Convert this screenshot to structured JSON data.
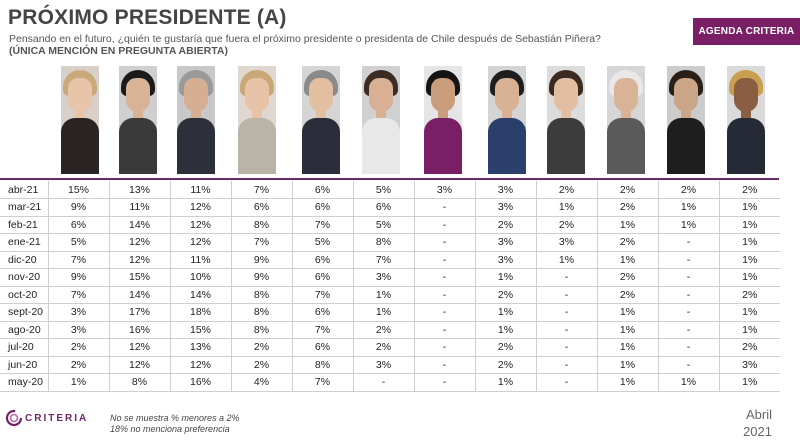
{
  "header": {
    "title": "PRÓXIMO PRESIDENTE (A)",
    "subtitle": "Pensando en el futuro, ¿quién te gustaría que fuera el próximo presidente o presidenta de Chile después de Sebastián Piñera?",
    "subtitle2": "(ÚNICA MENCIÓN EN PREGUNTA ABIERTA)",
    "badge": "AGENDA CRITERIA"
  },
  "colors": {
    "accent": "#7a1f66",
    "separator": "#6b2a6a",
    "grid": "#cfcfcf"
  },
  "portraits": [
    {
      "icon": "person-portrait-icon",
      "bg": "#d8cfc8",
      "hair": "#c9a87a",
      "face": "#e8c4a8",
      "body": "#2a2424"
    },
    {
      "icon": "person-portrait-icon",
      "bg": "#cfcfcf",
      "hair": "#1a1a1a",
      "face": "#d9b396",
      "body": "#3a3a3a"
    },
    {
      "icon": "person-portrait-icon",
      "bg": "#c8c8c8",
      "hair": "#9a9a9a",
      "face": "#d6ae92",
      "body": "#2d2f3a"
    },
    {
      "icon": "person-portrait-icon",
      "bg": "#e0d8d0",
      "hair": "#c9a878",
      "face": "#e6c3a6",
      "body": "#b9b3a8"
    },
    {
      "icon": "person-portrait-icon",
      "bg": "#d5d5d5",
      "hair": "#8a8a8a",
      "face": "#e3bfa2",
      "body": "#2b2e3a"
    },
    {
      "icon": "person-portrait-icon",
      "bg": "#d0d0d0",
      "hair": "#3a2c22",
      "face": "#d8b094",
      "body": "#e8e8e8"
    },
    {
      "icon": "person-portrait-icon",
      "bg": "#e5e5e5",
      "hair": "#141414",
      "face": "#c99c7c",
      "body": "#7a1f66"
    },
    {
      "icon": "person-portrait-icon",
      "bg": "#d4d4d4",
      "hair": "#1e1e1e",
      "face": "#d9b194",
      "body": "#2a3f6b"
    },
    {
      "icon": "person-portrait-icon",
      "bg": "#dcdcdc",
      "hair": "#3a2a20",
      "face": "#e2bea2",
      "body": "#3c3c3c"
    },
    {
      "icon": "person-portrait-icon",
      "bg": "#d6d6d6",
      "hair": "#e8e8e8",
      "face": "#d9b398",
      "body": "#5a5a5a"
    },
    {
      "icon": "person-portrait-icon",
      "bg": "#cccccc",
      "hair": "#2a2018",
      "face": "#caa588",
      "body": "#1e1e1e"
    },
    {
      "icon": "person-portrait-icon",
      "bg": "#dadada",
      "hair": "#c8a050",
      "face": "#8a5e42",
      "body": "#262a36"
    }
  ],
  "chart_data": {
    "type": "table",
    "rows": [
      {
        "month": "abr-21",
        "values": [
          "15%",
          "13%",
          "11%",
          "7%",
          "6%",
          "5%",
          "3%",
          "3%",
          "2%",
          "2%",
          "2%",
          "2%"
        ]
      },
      {
        "month": "mar-21",
        "values": [
          "9%",
          "11%",
          "12%",
          "6%",
          "6%",
          "6%",
          "-",
          "3%",
          "1%",
          "2%",
          "1%",
          "1%"
        ]
      },
      {
        "month": "feb-21",
        "values": [
          "6%",
          "14%",
          "12%",
          "8%",
          "7%",
          "5%",
          "-",
          "2%",
          "2%",
          "1%",
          "1%",
          "1%"
        ]
      },
      {
        "month": "ene-21",
        "values": [
          "5%",
          "12%",
          "12%",
          "7%",
          "5%",
          "8%",
          "-",
          "3%",
          "3%",
          "2%",
          "-",
          "1%"
        ]
      },
      {
        "month": "dic-20",
        "values": [
          "7%",
          "12%",
          "11%",
          "9%",
          "6%",
          "7%",
          "-",
          "3%",
          "1%",
          "1%",
          "-",
          "1%"
        ]
      },
      {
        "month": "nov-20",
        "values": [
          "9%",
          "15%",
          "10%",
          "9%",
          "6%",
          "3%",
          "-",
          "1%",
          "-",
          "2%",
          "-",
          "1%"
        ]
      },
      {
        "month": "oct-20",
        "values": [
          "7%",
          "14%",
          "14%",
          "8%",
          "7%",
          "1%",
          "-",
          "2%",
          "-",
          "2%",
          "-",
          "2%"
        ]
      },
      {
        "month": "sept-20",
        "values": [
          "3%",
          "17%",
          "18%",
          "8%",
          "6%",
          "1%",
          "-",
          "1%",
          "-",
          "1%",
          "-",
          "1%"
        ]
      },
      {
        "month": "ago-20",
        "values": [
          "3%",
          "16%",
          "15%",
          "8%",
          "7%",
          "2%",
          "-",
          "1%",
          "-",
          "1%",
          "-",
          "1%"
        ]
      },
      {
        "month": "jul-20",
        "values": [
          "2%",
          "12%",
          "13%",
          "2%",
          "6%",
          "2%",
          "-",
          "2%",
          "-",
          "1%",
          "-",
          "2%"
        ]
      },
      {
        "month": "jun-20",
        "values": [
          "2%",
          "12%",
          "12%",
          "2%",
          "8%",
          "3%",
          "-",
          "2%",
          "-",
          "1%",
          "-",
          "3%"
        ]
      },
      {
        "month": "may-20",
        "values": [
          "1%",
          "8%",
          "16%",
          "4%",
          "7%",
          "-",
          "-",
          "1%",
          "-",
          "1%",
          "1%",
          "1%"
        ]
      }
    ]
  },
  "footer": {
    "logo": "CRITERIA",
    "note1": "No se muestra % menores a 2%",
    "note2": "18% no menciona preferencia",
    "date_month": "Abril",
    "date_year": "2021"
  }
}
